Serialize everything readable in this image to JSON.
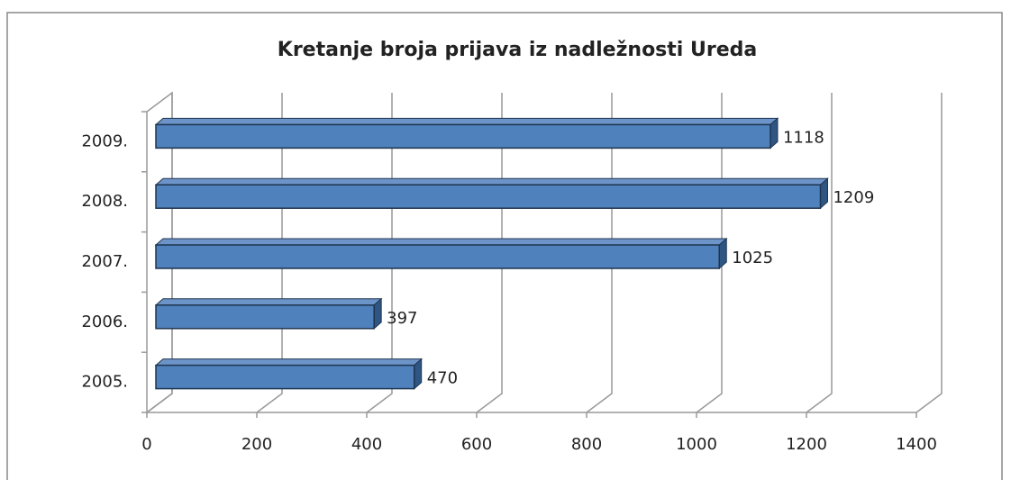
{
  "chart_data": {
    "type": "bar3d-horizontal",
    "title": "Kretanje broja prijava iz nadležnosti Ureda",
    "categories": [
      "2005.",
      "2006.",
      "2007.",
      "2008.",
      "2009."
    ],
    "values": [
      470,
      397,
      1025,
      1209,
      1118
    ],
    "color": "#4f81bd",
    "xlim": [
      0,
      1400
    ],
    "xticks": [
      0,
      200,
      400,
      600,
      800,
      1000,
      1200,
      1400
    ],
    "grid": true
  }
}
